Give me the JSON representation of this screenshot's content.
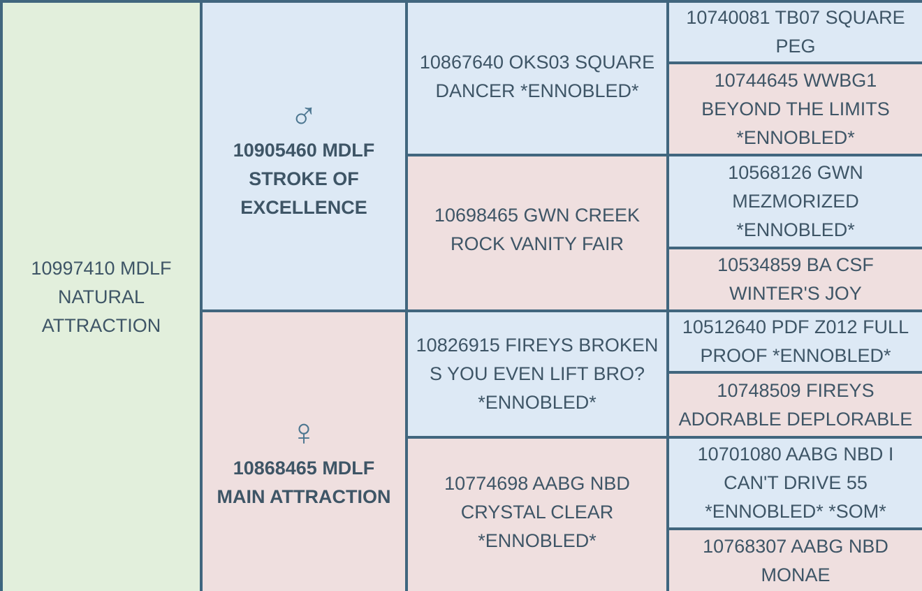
{
  "subject": {
    "name": "10997410 MDLF NATURAL ATTRACTION"
  },
  "sire": {
    "symbol": "♂",
    "name": "10905460 MDLF STROKE OF EXCELLENCE"
  },
  "dam": {
    "symbol": "♀",
    "name": "10868465 MDLF MAIN ATTRACTION"
  },
  "grandparents": [
    {
      "name": "10867640 OKS03 SQUARE DANCER *ENNOBLED*"
    },
    {
      "name": "10698465 GWN CREEK ROCK VANITY FAIR"
    },
    {
      "name": "10826915 FIREYS BROKEN S YOU EVEN LIFT BRO? *ENNOBLED*"
    },
    {
      "name": "10774698 AABG NBD CRYSTAL CLEAR *ENNOBLED*"
    }
  ],
  "great_grandparents": [
    {
      "name": "10740081 TB07 SQUARE PEG"
    },
    {
      "name": "10744645 WWBG1 BEYOND THE LIMITS *ENNOBLED*"
    },
    {
      "name": "10568126 GWN MEZMORIZED *ENNOBLED*"
    },
    {
      "name": "10534859 BA CSF WINTER'S JOY"
    },
    {
      "name": "10512640 PDF Z012 FULL PROOF *ENNOBLED*"
    },
    {
      "name": "10748509 FIREYS ADORABLE DEPLORABLE"
    },
    {
      "name": "10701080 AABG NBD I CAN'T DRIVE 55 *ENNOBLED* *SOM*"
    },
    {
      "name": "10768307 AABG NBD MONAE"
    }
  ]
}
